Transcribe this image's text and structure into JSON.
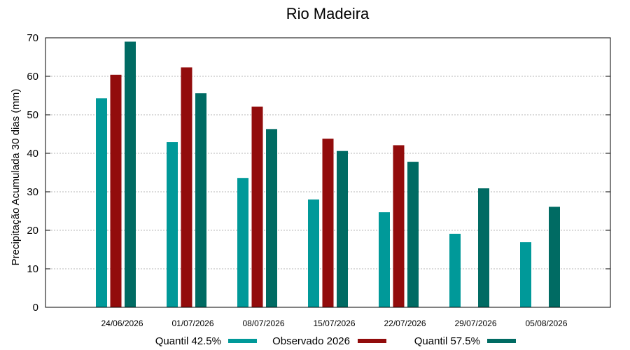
{
  "chart_data": {
    "type": "bar",
    "title": "Rio Madeira",
    "xlabel": "",
    "ylabel": "Precipitação Acumulada 30 dias (mm)",
    "ylim": [
      0,
      70
    ],
    "yticks": [
      0,
      10,
      20,
      30,
      40,
      50,
      60,
      70
    ],
    "grid": true,
    "legend_position": "bottom",
    "categories": [
      "24/06/2026",
      "01/07/2026",
      "08/07/2026",
      "15/07/2026",
      "22/07/2026",
      "29/07/2026",
      "05/08/2026"
    ],
    "series": [
      {
        "name": "Quantil 42.5%",
        "color": "#009999",
        "values": [
          54.3,
          42.9,
          33.6,
          28.0,
          24.7,
          19.1,
          16.9
        ]
      },
      {
        "name": "Observado 2026",
        "color": "#920c0c",
        "values": [
          60.4,
          62.3,
          52.1,
          43.8,
          42.1,
          null,
          null
        ]
      },
      {
        "name": "Quantil 57.5%",
        "color": "#006b63",
        "values": [
          69.0,
          55.6,
          46.3,
          40.6,
          37.8,
          30.9,
          26.1
        ]
      }
    ]
  }
}
